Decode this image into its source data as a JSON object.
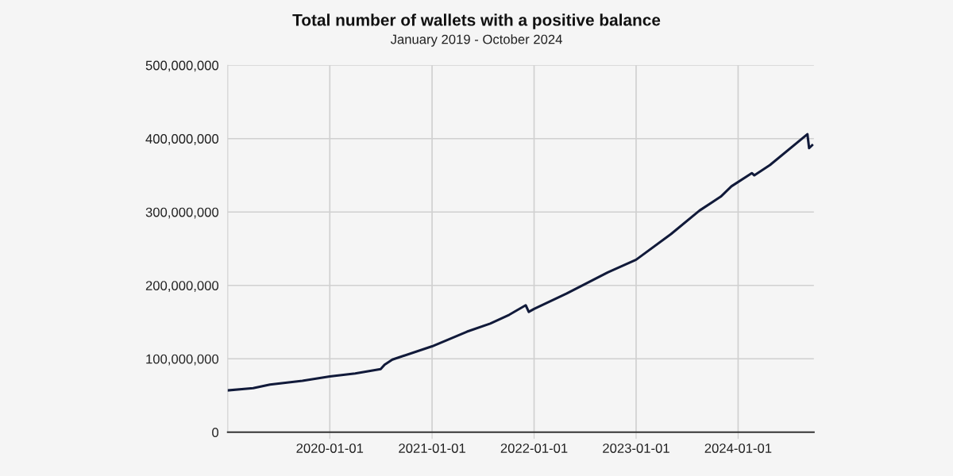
{
  "chart_data": {
    "type": "line",
    "title": "Total number of wallets with a positive balance",
    "subtitle": "January 2019 - October 2024",
    "x": [
      "2019-01-01",
      "2019-04-02",
      "2019-06-01",
      "2019-09-25",
      "2020-01-01",
      "2020-04-01",
      "2020-07-01",
      "2020-07-15",
      "2020-08-12",
      "2021-01-01",
      "2021-05-06",
      "2021-07-28",
      "2021-10-04",
      "2021-12-02",
      "2021-12-13",
      "2022-01-01",
      "2022-04-28",
      "2022-09-23",
      "2023-01-01",
      "2023-05-06",
      "2023-08-16",
      "2023-10-31",
      "2023-12-08",
      "2024-02-19",
      "2024-02-28",
      "2024-04-24",
      "2024-09-05",
      "2024-09-11",
      "2024-09-22"
    ],
    "series": [
      {
        "color": "#111a3a",
        "values": [
          57000000,
          60000000,
          65000000,
          70000000,
          76000000,
          80000000,
          86000000,
          92000000,
          99000000,
          117000000,
          137000000,
          148000000,
          160000000,
          173000000,
          164000000,
          168000000,
          189000000,
          218000000,
          235000000,
          270000000,
          302000000,
          321000000,
          335000000,
          353000000,
          350000000,
          364000000,
          406000000,
          387000000,
          391000000
        ]
      }
    ],
    "xlim": [
      "2019-01-01",
      "2024-09-28"
    ],
    "xticks": [
      {
        "value": "2020-01-01",
        "label": "2020-01-01"
      },
      {
        "value": "2021-01-01",
        "label": "2021-01-01"
      },
      {
        "value": "2022-01-01",
        "label": "2022-01-01"
      },
      {
        "value": "2023-01-01",
        "label": "2023-01-01"
      },
      {
        "value": "2024-01-01",
        "label": "2024-01-01"
      }
    ],
    "ylim": [
      0,
      500000000
    ],
    "yticks": [
      {
        "value": 0,
        "label": "0"
      },
      {
        "value": 100000000,
        "label": "100,000,000"
      },
      {
        "value": 200000000,
        "label": "200,000,000"
      },
      {
        "value": 300000000,
        "label": "300,000,000"
      },
      {
        "value": 400000000,
        "label": "400,000,000"
      },
      {
        "value": 500000000,
        "label": "500,000,000"
      }
    ],
    "grid": true,
    "line_style": "solid"
  }
}
